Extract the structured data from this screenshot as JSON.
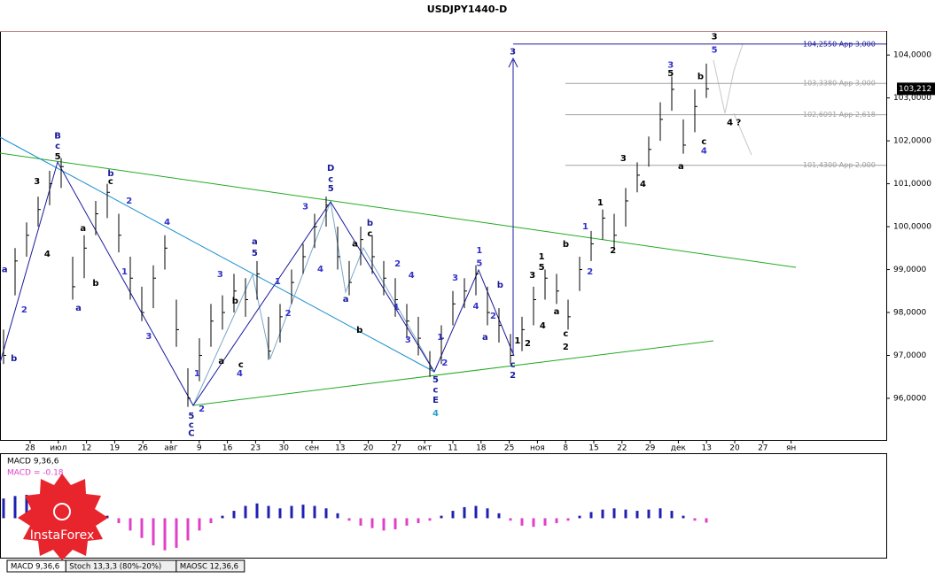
{
  "chart_data": {
    "type": "ohlc",
    "title": "USDJPY1440-D",
    "ylim": [
      95.03,
      104.56
    ],
    "yticks": [
      {
        "value": 104,
        "label": "104,0000"
      },
      {
        "value": 103,
        "label": "103,0000"
      },
      {
        "value": 102,
        "label": "102,0000"
      },
      {
        "value": 101,
        "label": "101,0000"
      },
      {
        "value": 100,
        "label": "100,0000"
      },
      {
        "value": 99,
        "label": "99,0000"
      },
      {
        "value": 98,
        "label": "98,0000"
      },
      {
        "value": 97,
        "label": "97,0000"
      },
      {
        "value": 96,
        "label": "96,0000"
      }
    ],
    "categories": [
      "28",
      "июл",
      "12",
      "19",
      "26",
      "авг",
      "9",
      "16",
      "23",
      "30",
      "сен",
      "13",
      "20",
      "27",
      "окт",
      "11",
      "18",
      "25",
      "ноя",
      "8",
      "15",
      "22",
      "29",
      "дек",
      "13",
      "20",
      "27",
      "ян"
    ],
    "current_price": {
      "value": 103.212,
      "label": "103,212"
    },
    "series": [
      {
        "name": "USDJPY",
        "color": "#000000",
        "high": [
          97.6,
          99.5,
          100.1,
          100.7,
          101.3,
          101.6,
          99.3,
          99.8,
          100.6,
          101.0,
          100.3,
          99.3,
          98.6,
          99.1,
          99.8,
          98.3,
          96.7,
          97.4,
          98.2,
          98.4,
          98.9,
          98.8,
          99.2,
          97.9,
          98.2,
          99.0,
          99.6,
          100.3,
          100.7,
          100.0,
          99.2,
          100.0,
          99.8,
          99.2,
          98.8,
          98.2,
          97.9,
          97.1,
          97.7,
          98.5,
          98.8,
          99.1,
          98.6,
          98.1,
          97.5,
          97.9,
          98.6,
          99.0,
          98.9,
          98.3,
          99.3,
          99.9,
          100.4,
          100.3,
          100.9,
          101.5,
          102.1,
          102.9,
          103.5,
          102.5,
          103.2,
          103.8
        ],
        "low": [
          96.8,
          98.4,
          99.3,
          100.0,
          100.5,
          100.9,
          98.3,
          98.8,
          99.8,
          100.2,
          99.4,
          98.3,
          97.8,
          98.1,
          99.0,
          97.2,
          95.8,
          96.4,
          97.2,
          97.6,
          98.0,
          97.9,
          98.3,
          96.9,
          97.3,
          98.2,
          98.9,
          99.5,
          100.0,
          99.0,
          98.4,
          99.1,
          98.9,
          98.4,
          97.9,
          97.4,
          97.0,
          96.5,
          96.8,
          97.7,
          98.1,
          98.4,
          97.7,
          97.3,
          96.8,
          97.1,
          97.7,
          98.3,
          98.2,
          97.6,
          98.5,
          99.2,
          99.7,
          99.5,
          100.0,
          100.8,
          101.4,
          102.0,
          102.7,
          101.7,
          102.2,
          103.0
        ],
        "close": [
          97.0,
          99.2,
          99.8,
          100.4,
          101.0,
          101.4,
          98.6,
          99.5,
          100.3,
          100.8,
          99.8,
          98.8,
          98.0,
          98.8,
          99.5,
          97.6,
          96.0,
          97.0,
          97.8,
          98.0,
          98.5,
          98.3,
          98.9,
          97.1,
          97.9,
          98.7,
          99.3,
          100.0,
          100.5,
          99.3,
          98.7,
          99.7,
          99.3,
          98.8,
          98.3,
          97.8,
          97.4,
          96.7,
          97.4,
          98.2,
          98.5,
          98.9,
          98.0,
          97.7,
          97.0,
          97.6,
          98.3,
          98.8,
          98.5,
          97.9,
          99.0,
          99.6,
          100.2,
          99.8,
          100.6,
          101.2,
          101.8,
          102.5,
          103.2,
          101.9,
          102.8,
          103.212
        ]
      }
    ],
    "levels": [
      {
        "value": 104.255,
        "label": "104,2550 App 3,000",
        "color": "#1a1a9c"
      },
      {
        "value": 103.338,
        "label": "103,3380 App 3,000",
        "color": "#a0a0a0"
      },
      {
        "value": 102.6091,
        "label": "102,6091 App 2,618",
        "color": "#a0a0a0"
      },
      {
        "value": 101.43,
        "label": "101,4300 App 2,000",
        "color": "#a0a0a0"
      }
    ],
    "annotations": [
      {
        "text": "a",
        "bar": 0.1,
        "price": 99.0,
        "color": "#1a1a9c"
      },
      {
        "text": "b",
        "bar": 0.9,
        "price": 96.93,
        "color": "#1a1a9c"
      },
      {
        "text": "2",
        "bar": 1.8,
        "price": 98.06,
        "color": "#3333cc"
      },
      {
        "text": "3",
        "bar": 2.9,
        "price": 101.05,
        "color": "#000000"
      },
      {
        "text": "4",
        "bar": 3.8,
        "price": 99.36,
        "color": "#000000"
      },
      {
        "text": "B",
        "bar": 4.7,
        "price": 102.12,
        "color": "#1a1a9c"
      },
      {
        "text": "c",
        "bar": 4.7,
        "price": 101.88,
        "color": "#1a1a9c"
      },
      {
        "text": "5",
        "bar": 4.7,
        "price": 101.63,
        "color": "#000000"
      },
      {
        "text": "a",
        "bar": 6.5,
        "price": 98.1,
        "color": "#1a1a9c"
      },
      {
        "text": "a",
        "bar": 6.9,
        "price": 99.96,
        "color": "#000000"
      },
      {
        "text": "b",
        "bar": 8.0,
        "price": 98.68,
        "color": "#000000"
      },
      {
        "text": "b",
        "bar": 9.3,
        "price": 101.24,
        "color": "#1a1a9c"
      },
      {
        "text": "c",
        "bar": 9.3,
        "price": 101.05,
        "color": "#000000"
      },
      {
        "text": "1",
        "bar": 10.5,
        "price": 98.95,
        "color": "#3333cc"
      },
      {
        "text": "2",
        "bar": 10.9,
        "price": 100.6,
        "color": "#3333cc"
      },
      {
        "text": "3",
        "bar": 12.6,
        "price": 97.44,
        "color": "#3333cc"
      },
      {
        "text": "4",
        "bar": 14.2,
        "price": 100.1,
        "color": "#3333cc"
      },
      {
        "text": "5",
        "bar": 16.3,
        "price": 95.59,
        "color": "#1a1a9c"
      },
      {
        "text": "c",
        "bar": 16.3,
        "price": 95.38,
        "color": "#1a1a9c"
      },
      {
        "text": "C",
        "bar": 16.3,
        "price": 95.18,
        "color": "#1a1a9c"
      },
      {
        "text": "1",
        "bar": 16.8,
        "price": 96.58,
        "color": "#3333cc"
      },
      {
        "text": "2",
        "bar": 17.2,
        "price": 95.75,
        "color": "#3333cc"
      },
      {
        "text": "3",
        "bar": 18.8,
        "price": 98.89,
        "color": "#3333cc"
      },
      {
        "text": "a",
        "bar": 18.9,
        "price": 96.87,
        "color": "#000000"
      },
      {
        "text": "b",
        "bar": 20.1,
        "price": 98.27,
        "color": "#000000"
      },
      {
        "text": "4",
        "bar": 20.5,
        "price": 96.58,
        "color": "#3333cc"
      },
      {
        "text": "c",
        "bar": 20.6,
        "price": 96.78,
        "color": "#000000"
      },
      {
        "text": "a",
        "bar": 21.8,
        "price": 99.65,
        "color": "#1a1a9c"
      },
      {
        "text": "5",
        "bar": 21.8,
        "price": 99.38,
        "color": "#1a1a9c"
      },
      {
        "text": "1",
        "bar": 23.8,
        "price": 98.72,
        "color": "#3333cc"
      },
      {
        "text": "2",
        "bar": 24.7,
        "price": 97.98,
        "color": "#3333cc"
      },
      {
        "text": "3",
        "bar": 26.2,
        "price": 100.47,
        "color": "#3333cc"
      },
      {
        "text": "4",
        "bar": 27.5,
        "price": 99.01,
        "color": "#3333cc"
      },
      {
        "text": "D",
        "bar": 28.4,
        "price": 101.36,
        "color": "#1a1a9c"
      },
      {
        "text": "c",
        "bar": 28.4,
        "price": 101.11,
        "color": "#1a1a9c"
      },
      {
        "text": "5",
        "bar": 28.4,
        "price": 100.89,
        "color": "#1a1a9c"
      },
      {
        "text": "a",
        "bar": 29.7,
        "price": 98.31,
        "color": "#1a1a9c"
      },
      {
        "text": "a",
        "bar": 30.5,
        "price": 99.6,
        "color": "#000000"
      },
      {
        "text": "b",
        "bar": 30.9,
        "price": 97.59,
        "color": "#000000"
      },
      {
        "text": "b",
        "bar": 31.8,
        "price": 100.08,
        "color": "#1a1a9c"
      },
      {
        "text": "c",
        "bar": 31.8,
        "price": 99.84,
        "color": "#000000"
      },
      {
        "text": "1",
        "bar": 34.1,
        "price": 98.12,
        "color": "#3333cc"
      },
      {
        "text": "2",
        "bar": 34.2,
        "price": 99.13,
        "color": "#3333cc"
      },
      {
        "text": "3",
        "bar": 35.1,
        "price": 97.36,
        "color": "#3333cc"
      },
      {
        "text": "4",
        "bar": 35.4,
        "price": 98.87,
        "color": "#3333cc"
      },
      {
        "text": "5",
        "bar": 37.5,
        "price": 96.43,
        "color": "#1a1a9c"
      },
      {
        "text": "c",
        "bar": 37.5,
        "price": 96.2,
        "color": "#1a1a9c"
      },
      {
        "text": "E",
        "bar": 37.5,
        "price": 95.96,
        "color": "#1a1a9c"
      },
      {
        "text": "4",
        "bar": 37.5,
        "price": 95.65,
        "color": "#2aa0d0"
      },
      {
        "text": "1",
        "bar": 37.9,
        "price": 97.42,
        "color": "#3333cc"
      },
      {
        "text": "2",
        "bar": 38.3,
        "price": 96.82,
        "color": "#3333cc"
      },
      {
        "text": "3",
        "bar": 39.2,
        "price": 98.8,
        "color": "#3333cc"
      },
      {
        "text": "4",
        "bar": 41.0,
        "price": 98.14,
        "color": "#3333cc"
      },
      {
        "text": "1",
        "bar": 41.3,
        "price": 99.44,
        "color": "#3333cc"
      },
      {
        "text": "5",
        "bar": 41.3,
        "price": 99.15,
        "color": "#3333cc"
      },
      {
        "text": "a",
        "bar": 41.8,
        "price": 97.42,
        "color": "#1a1a9c"
      },
      {
        "text": "2",
        "bar": 42.5,
        "price": 97.92,
        "color": "#3333cc"
      },
      {
        "text": "b",
        "bar": 43.1,
        "price": 98.64,
        "color": "#1a1a9c"
      },
      {
        "text": "3",
        "bar": 44.2,
        "price": 104.08,
        "color": "#1a1a9c"
      },
      {
        "text": "c",
        "bar": 44.2,
        "price": 96.78,
        "color": "#1a1a9c"
      },
      {
        "text": "2",
        "bar": 44.2,
        "price": 96.54,
        "color": "#1a1a9c"
      },
      {
        "text": "1",
        "bar": 44.6,
        "price": 97.34,
        "color": "#000000"
      },
      {
        "text": "2",
        "bar": 45.5,
        "price": 97.28,
        "color": "#000000"
      },
      {
        "text": "3",
        "bar": 45.9,
        "price": 98.87,
        "color": "#000000"
      },
      {
        "text": "1",
        "bar": 46.7,
        "price": 99.3,
        "color": "#000000"
      },
      {
        "text": "5",
        "bar": 46.7,
        "price": 99.05,
        "color": "#000000"
      },
      {
        "text": "4",
        "bar": 46.8,
        "price": 97.69,
        "color": "#000000"
      },
      {
        "text": "a",
        "bar": 48.0,
        "price": 98.02,
        "color": "#000000"
      },
      {
        "text": "b",
        "bar": 48.8,
        "price": 99.59,
        "color": "#000000"
      },
      {
        "text": "c",
        "bar": 48.8,
        "price": 97.51,
        "color": "#000000"
      },
      {
        "text": "2",
        "bar": 48.8,
        "price": 97.2,
        "color": "#000000"
      },
      {
        "text": "1",
        "bar": 50.5,
        "price": 100.0,
        "color": "#3333cc"
      },
      {
        "text": "2",
        "bar": 50.9,
        "price": 98.95,
        "color": "#3333cc"
      },
      {
        "text": "1",
        "bar": 51.8,
        "price": 100.56,
        "color": "#000000"
      },
      {
        "text": "2",
        "bar": 52.9,
        "price": 99.44,
        "color": "#000000"
      },
      {
        "text": "3",
        "bar": 53.8,
        "price": 101.59,
        "color": "#000000"
      },
      {
        "text": "4",
        "bar": 55.5,
        "price": 100.99,
        "color": "#000000"
      },
      {
        "text": "3",
        "bar": 57.9,
        "price": 103.77,
        "color": "#3333cc"
      },
      {
        "text": "5",
        "bar": 57.9,
        "price": 103.57,
        "color": "#000000"
      },
      {
        "text": "a",
        "bar": 58.8,
        "price": 101.4,
        "color": "#000000"
      },
      {
        "text": "b",
        "bar": 60.5,
        "price": 103.5,
        "color": "#000000"
      },
      {
        "text": "c",
        "bar": 60.8,
        "price": 101.98,
        "color": "#000000"
      },
      {
        "text": "4",
        "bar": 60.8,
        "price": 101.77,
        "color": "#3333cc"
      },
      {
        "text": "3",
        "bar": 61.7,
        "price": 104.43,
        "color": "#000000"
      },
      {
        "text": "5",
        "bar": 61.7,
        "price": 104.12,
        "color": "#3333cc"
      },
      {
        "text": "4 ?",
        "bar": 63.4,
        "price": 102.43,
        "color": "#000000"
      }
    ],
    "macd": {
      "label": "MACD 9,36,6",
      "current_label": "MACD = -0.18",
      "ylim": [
        -1.6,
        2.6
      ],
      "positive_color": "#2020b0",
      "negative_color": "#e040c8",
      "values": [
        0.8,
        0.9,
        0.95,
        0.9,
        0.85,
        0.7,
        0.4,
        0.3,
        0.2,
        0.1,
        -0.2,
        -0.5,
        -0.8,
        -1.1,
        -1.3,
        -1.2,
        -0.9,
        -0.5,
        -0.2,
        0.1,
        0.3,
        0.5,
        0.6,
        0.5,
        0.4,
        0.5,
        0.55,
        0.5,
        0.4,
        0.2,
        -0.1,
        -0.3,
        -0.4,
        -0.5,
        -0.45,
        -0.3,
        -0.2,
        -0.1,
        0.1,
        0.3,
        0.45,
        0.5,
        0.4,
        0.2,
        -0.1,
        -0.3,
        -0.35,
        -0.3,
        -0.2,
        -0.1,
        0.1,
        0.25,
        0.35,
        0.4,
        0.35,
        0.3,
        0.35,
        0.4,
        0.3,
        0.1,
        -0.1,
        -0.18
      ]
    },
    "tabs": [
      "MACD 9,36,6",
      "Stoch 13,3,3 (80%-20%)",
      "MAOSC 12,36,6"
    ],
    "logo": "InstaForex"
  }
}
